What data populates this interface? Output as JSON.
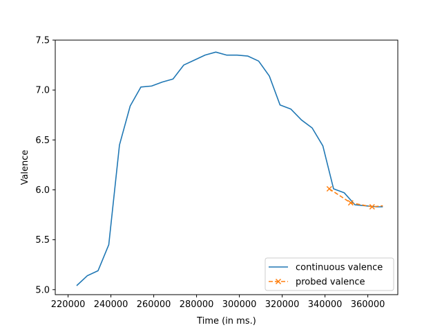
{
  "chart_data": {
    "type": "line",
    "xlabel": "Time (in ms.)",
    "ylabel": "Valence",
    "xlim": [
      214000,
      374000
    ],
    "ylim": [
      4.95,
      7.5
    ],
    "xticks": [
      220000,
      240000,
      260000,
      280000,
      300000,
      320000,
      340000,
      360000
    ],
    "xtick_labels": [
      "220000",
      "240000",
      "260000",
      "280000",
      "300000",
      "320000",
      "340000",
      "360000"
    ],
    "yticks": [
      5.0,
      5.5,
      6.0,
      6.5,
      7.0,
      7.5
    ],
    "ytick_labels": [
      "5.0",
      "5.5",
      "6.0",
      "6.5",
      "7.0",
      "7.5"
    ],
    "grid": false,
    "legend_position": "lower-right",
    "series": [
      {
        "name": "continuous valence",
        "color": "#1f77b4",
        "style": "solid",
        "marker": "none",
        "x": [
          224000,
          229000,
          234000,
          239000,
          244000,
          249000,
          254000,
          259000,
          264000,
          269000,
          274000,
          279000,
          284000,
          289000,
          294000,
          299000,
          304000,
          309000,
          314000,
          319000,
          324000,
          329000,
          334000,
          339000,
          344000,
          349000,
          354000,
          359000,
          364000,
          367000
        ],
        "y": [
          5.04,
          5.14,
          5.19,
          5.45,
          6.45,
          6.84,
          7.03,
          7.04,
          7.08,
          7.11,
          7.25,
          7.3,
          7.35,
          7.38,
          7.35,
          7.35,
          7.34,
          7.29,
          7.14,
          6.85,
          6.81,
          6.7,
          6.62,
          6.44,
          6.01,
          5.97,
          5.85,
          5.84,
          5.83,
          5.83
        ]
      },
      {
        "name": "probed valence",
        "color": "#ff7f0e",
        "style": "dashed",
        "marker": "x",
        "x": [
          342000,
          352000,
          362000,
          367000
        ],
        "y": [
          6.01,
          5.87,
          5.83,
          5.84
        ],
        "marker_indices": [
          0,
          1,
          2
        ]
      }
    ]
  }
}
